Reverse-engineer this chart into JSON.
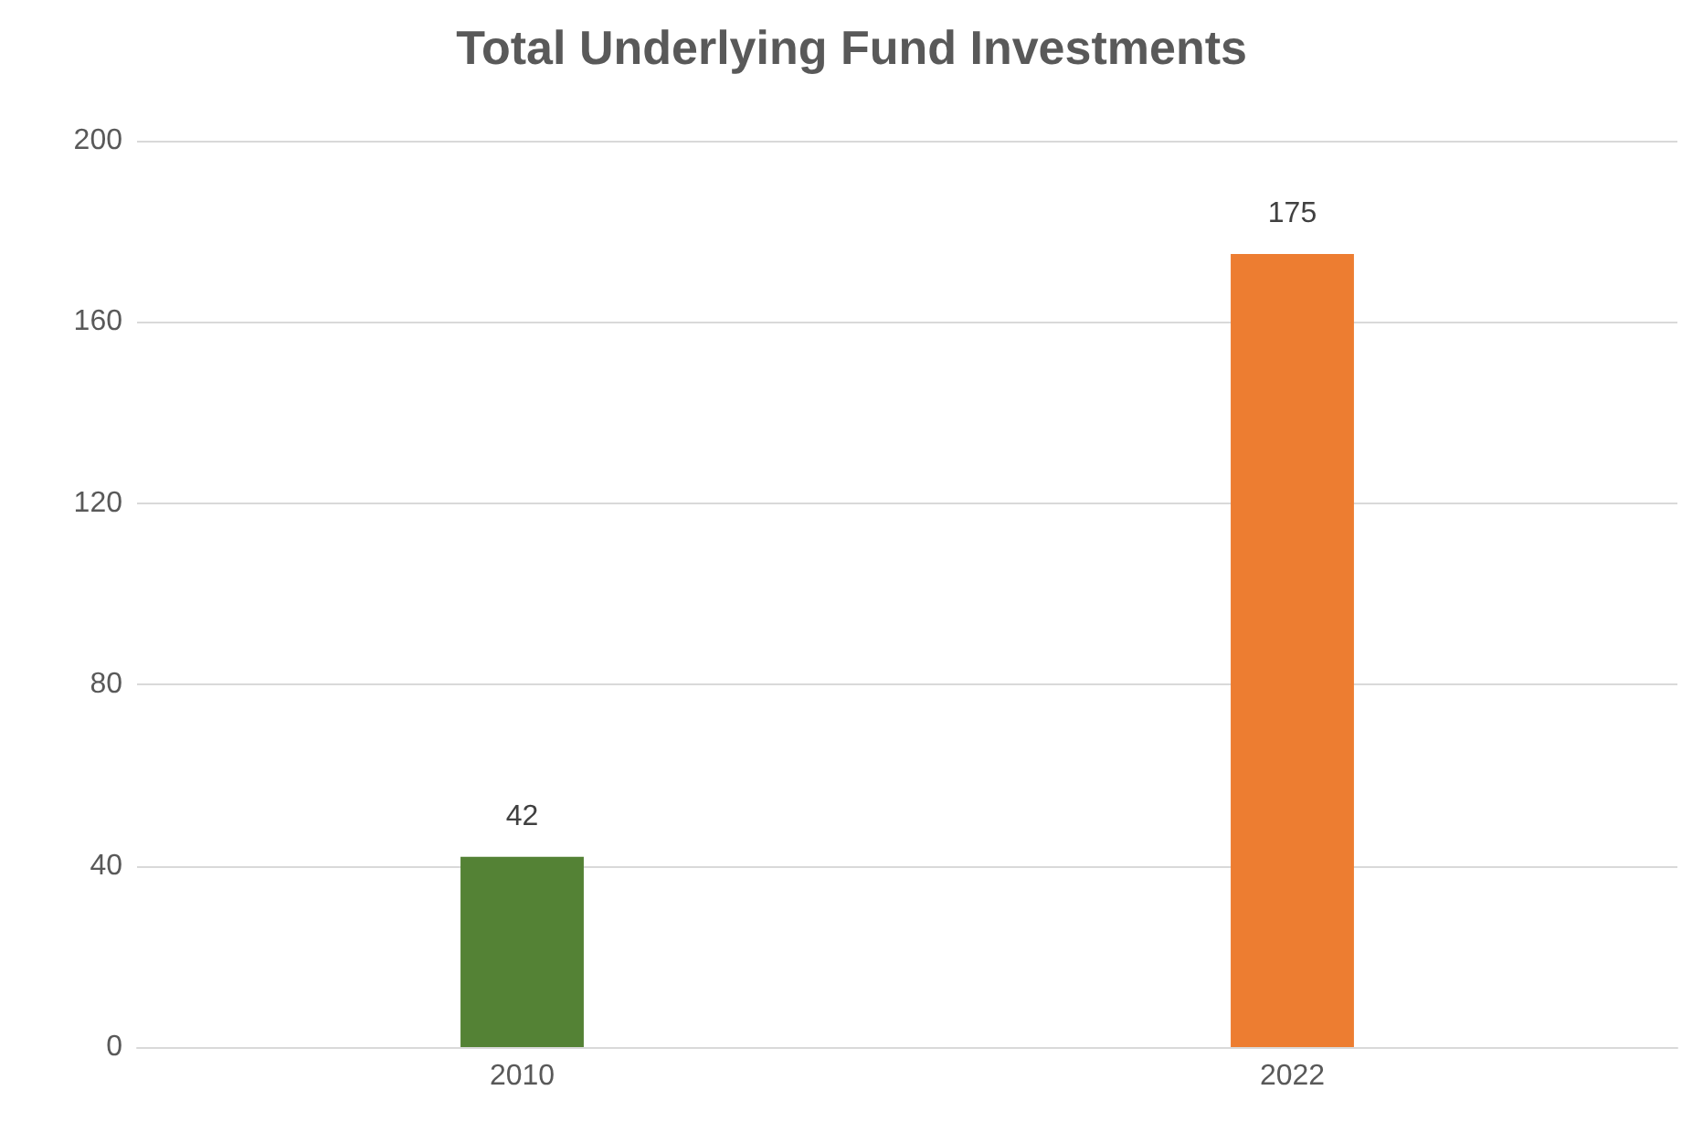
{
  "chart_data": {
    "type": "bar",
    "title": "Total Underlying Fund Investments",
    "categories": [
      "2010",
      "2022"
    ],
    "values": [
      42,
      175
    ],
    "colors": [
      "#548235",
      "#ed7d31"
    ],
    "ylim": [
      0,
      200
    ],
    "yticks": [
      0,
      40,
      80,
      120,
      160,
      200
    ],
    "grid": "y",
    "data_labels": true
  }
}
